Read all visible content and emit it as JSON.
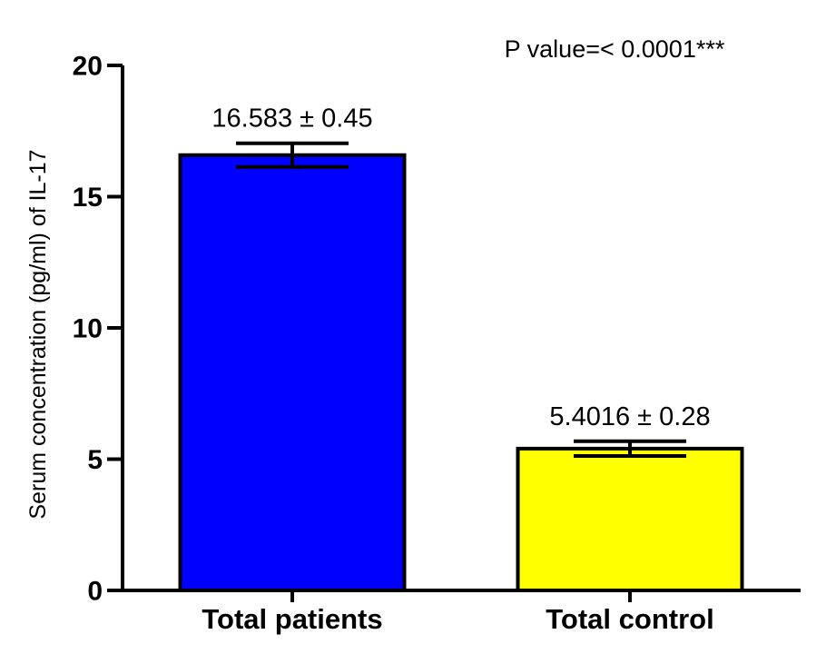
{
  "chart_data": {
    "type": "bar",
    "title": "",
    "xlabel": "",
    "ylabel": "Serum concentration (pg/ml) of IL-17",
    "ylim": [
      0,
      20
    ],
    "yticks": [
      0,
      5,
      10,
      15,
      20
    ],
    "ytick_labels": [
      "0",
      "5",
      "10",
      "15",
      "20"
    ],
    "categories": [
      "Total patients",
      "Total control"
    ],
    "values": [
      16.583,
      5.4016
    ],
    "errors": [
      0.45,
      0.28
    ],
    "data_labels": [
      "16.583 ± 0.45",
      "5.4016 ± 0.28"
    ],
    "colors": [
      "#0000ff",
      "#ffff00"
    ],
    "annotation": "P value=< 0.0001***",
    "grid": false,
    "legend": "none"
  }
}
